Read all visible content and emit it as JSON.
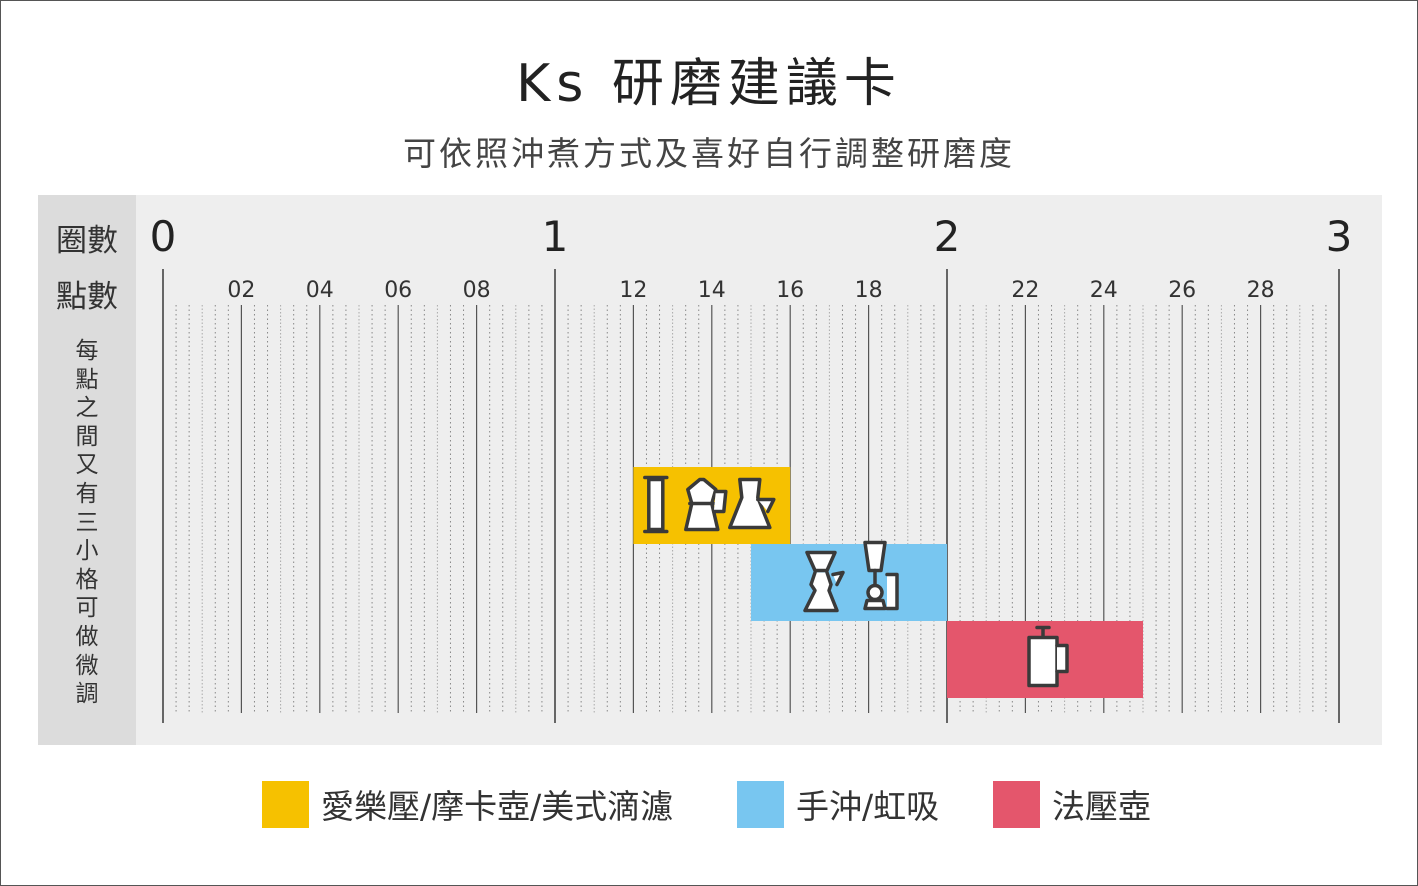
{
  "header": {
    "title": "Ks 研磨建議卡",
    "subtitle": "可依照沖煮方式及喜好自行調整研磨度"
  },
  "sidebar": {
    "turns_label": "圈數",
    "points_label": "點數",
    "note": "每點之間又有三小格可做微調"
  },
  "chart_data": {
    "type": "range-bar",
    "title": "Ks 研磨建議卡",
    "subtitle": "可依照沖煮方式及喜好自行調整研磨度",
    "turn_ticks": [
      "0",
      "1",
      "2",
      "3"
    ],
    "point_ticks": [
      "02",
      "04",
      "06",
      "08",
      "12",
      "14",
      "16",
      "18",
      "22",
      "24",
      "26",
      "28"
    ],
    "point_range": [
      0,
      30
    ],
    "points_per_turn": 10,
    "minor_ticks_per_point": 3,
    "grid": true,
    "legend_position": "bottom",
    "series": [
      {
        "name": "愛樂壓/摩卡壺/美式滴濾",
        "start": 12,
        "end": 16,
        "color": "#F6C100",
        "icons": [
          "aeropress-icon",
          "moka-pot-icon",
          "drip-brewer-icon"
        ]
      },
      {
        "name": "手沖/虹吸",
        "start": 15,
        "end": 20,
        "color": "#78C6F0",
        "icons": [
          "pour-over-icon",
          "siphon-icon"
        ]
      },
      {
        "name": "法壓壺",
        "start": 20,
        "end": 25,
        "color": "#E4566C",
        "icons": [
          "french-press-icon"
        ]
      }
    ]
  }
}
